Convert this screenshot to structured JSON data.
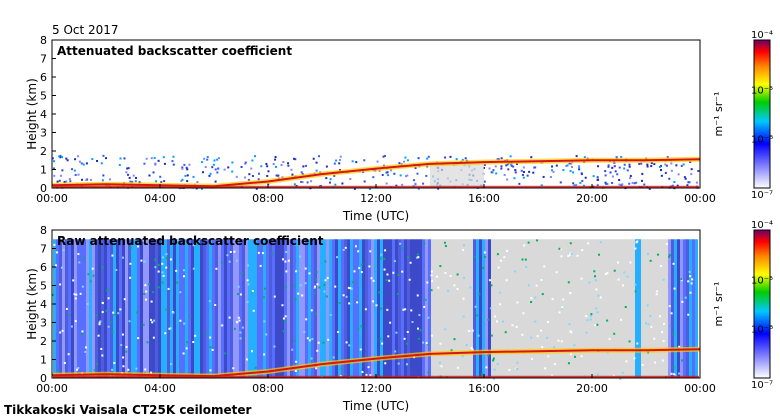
{
  "date_label": "5 Oct 2017",
  "footer": "Tikkakoski Vaisala CT25K ceilometer",
  "chart_data": [
    {
      "type": "heatmap",
      "title": "Attenuated backscatter coefficient",
      "xlabel": "Time (UTC)",
      "ylabel": "Height (km)",
      "xticks": [
        "00:00",
        "04:00",
        "08:00",
        "12:00",
        "16:00",
        "20:00",
        "00:00"
      ],
      "yticks": [
        "0",
        "1",
        "2",
        "3",
        "4",
        "5",
        "6",
        "7",
        "8"
      ],
      "xlim_hours": [
        0,
        24
      ],
      "ylim_km": [
        0,
        8
      ],
      "boundary_layer_height_km": [
        [
          0.0,
          0.15
        ],
        [
          2.0,
          0.2
        ],
        [
          4.0,
          0.15
        ],
        [
          6.0,
          0.1
        ],
        [
          8.0,
          0.35
        ],
        [
          10.0,
          0.75
        ],
        [
          12.0,
          1.05
        ],
        [
          14.0,
          1.3
        ],
        [
          16.0,
          1.4
        ],
        [
          18.0,
          1.45
        ],
        [
          20.0,
          1.5
        ],
        [
          22.0,
          1.5
        ],
        [
          24.0,
          1.55
        ]
      ],
      "colorbar": {
        "label_unit": "m⁻¹ sr⁻¹",
        "tick_labels": [
          "10⁻⁴",
          "10⁻⁵",
          "10⁻⁶",
          "10⁻⁷"
        ],
        "scale": "log",
        "range": [
          1e-07,
          0.0001
        ]
      }
    },
    {
      "type": "heatmap",
      "title": "Raw attenuated backscatter coefficient",
      "xlabel": "Time (UTC)",
      "ylabel": "Height (km)",
      "xticks": [
        "00:00",
        "04:00",
        "08:00",
        "12:00",
        "16:00",
        "20:00",
        "00:00"
      ],
      "yticks": [
        "0",
        "1",
        "2",
        "3",
        "4",
        "5",
        "6",
        "7",
        "8"
      ],
      "xlim_hours": [
        0,
        24
      ],
      "ylim_km": [
        0,
        8
      ],
      "colorbar": {
        "label_unit": "m⁻¹ sr⁻¹",
        "tick_labels": [
          "10⁻⁴",
          "10⁻⁵",
          "10⁻⁶",
          "10⁻⁷"
        ],
        "scale": "log",
        "range": [
          1e-07,
          0.0001
        ]
      }
    }
  ],
  "colors": {
    "noise_grey": "#d9d9d9",
    "noise_blue": "#2f3fd8",
    "layer_red": "#d81414"
  }
}
